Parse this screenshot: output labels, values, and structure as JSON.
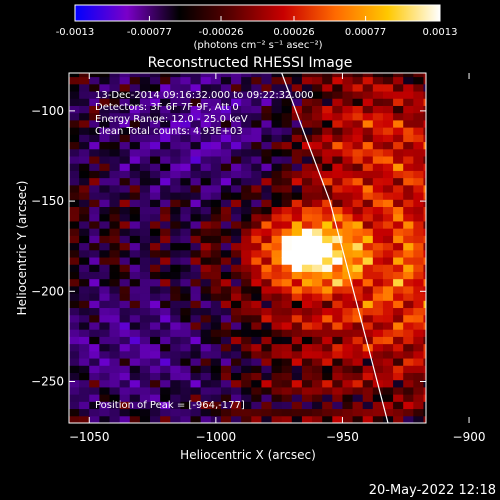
{
  "colorbar": {
    "ticks": [
      "-0.0013",
      "-0.00077",
      "-0.00026",
      "0.00026",
      "0.00077",
      "0.0013"
    ],
    "range": [
      -0.0013,
      0.0013
    ],
    "label": "(photons cm⁻² s⁻¹ asec⁻²)",
    "colormap": [
      "#0000ff",
      "#7a00c8",
      "#000000",
      "#5a0000",
      "#c80000",
      "#ff6a00",
      "#ffc800",
      "#ffffff"
    ]
  },
  "chart_data": {
    "type": "heatmap",
    "title": "Reconstructed RHESSI Image",
    "xlabel": "Heliocentric X (arcsec)",
    "ylabel": "Heliocentric Y (arcsec)",
    "xlim": [
      -1058,
      -917
    ],
    "ylim": [
      -273,
      -79
    ],
    "xticks": [
      {
        "value": -1050,
        "label": "−1050"
      },
      {
        "value": -1000,
        "label": "−1000"
      },
      {
        "value": -950,
        "label": "−950"
      },
      {
        "value": -900,
        "label": "−900"
      }
    ],
    "yticks": [
      {
        "value": -100,
        "label": "−100"
      },
      {
        "value": -150,
        "label": "−150"
      },
      {
        "value": -200,
        "label": "−200"
      },
      {
        "value": -250,
        "label": "−250"
      }
    ],
    "peak": {
      "x": -964,
      "y": -177
    },
    "limb_line": [
      [
        -974,
        -79
      ],
      [
        -955,
        -150
      ],
      [
        -940,
        -230
      ],
      [
        -932,
        -273
      ]
    ],
    "annotations": [
      "13-Dec-2014 09:16:32.000 to 09:22:32.000",
      "Detectors: 3F 6F 7F 9F, Att 0",
      "Energy Range: 12.0 - 25.0 keV",
      "Clean     Total counts: 4.93E+03"
    ],
    "peak_label": "Position of Peak = [-964,-177]",
    "grid": false
  },
  "timestamp": "20-May-2022 12:18"
}
